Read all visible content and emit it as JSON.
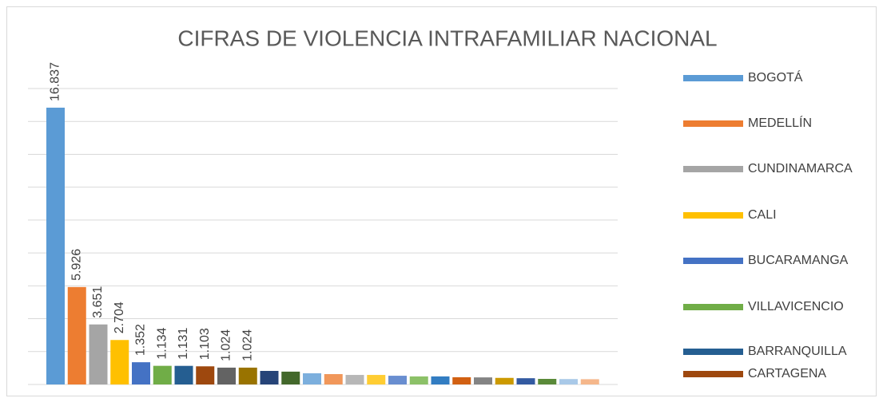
{
  "chart_data": {
    "type": "bar",
    "title": "CIFRAS DE VIOLENCIA INTRAFAMILIAR NACIONAL",
    "categories": [
      "BOGOTÁ",
      "MEDELLÍN",
      "CUNDINAMARCA",
      "CALI",
      "BUCARAMANGA",
      "VILLAVICENCIO",
      "BARRANQUILLA",
      "CARTAGENA",
      null,
      null,
      null,
      null,
      null,
      null,
      null,
      null,
      null,
      null,
      null,
      null,
      null,
      null,
      null,
      null,
      null,
      null
    ],
    "values": [
      16837,
      5926,
      3651,
      2704,
      1352,
      1134,
      1131,
      1103,
      1024,
      1024,
      825,
      780,
      680,
      630,
      580,
      580,
      530,
      490,
      490,
      440,
      430,
      400,
      380,
      340,
      330,
      320
    ],
    "value_labels": [
      "16.837",
      "5.926",
      "3.651",
      "2.704",
      "1.352",
      "1.134",
      "1.131",
      "1.103",
      "1.024",
      "1.024",
      null,
      null,
      null,
      null,
      null,
      null,
      null,
      null,
      null,
      null,
      null,
      null,
      null,
      null,
      null,
      null
    ],
    "colors": [
      "#5b9bd5",
      "#ed7d31",
      "#a5a5a5",
      "#ffc000",
      "#4472c4",
      "#70ad47",
      "#255e91",
      "#9e480e",
      "#636363",
      "#997300",
      "#264478",
      "#43682b",
      "#7cafdd",
      "#f1975a",
      "#b7b7b7",
      "#ffcd33",
      "#698ed0",
      "#8cc168",
      "#327dc2",
      "#d26012",
      "#848484",
      "#cc9a00",
      "#335aa1",
      "#5a8a39",
      "#a9c9e8",
      "#f5b78b"
    ],
    "ylim": [
      0,
      18000
    ],
    "yticks": [
      0,
      2000,
      4000,
      6000,
      8000,
      10000,
      12000,
      14000,
      16000,
      18000
    ],
    "grid": true,
    "legend": "right"
  }
}
